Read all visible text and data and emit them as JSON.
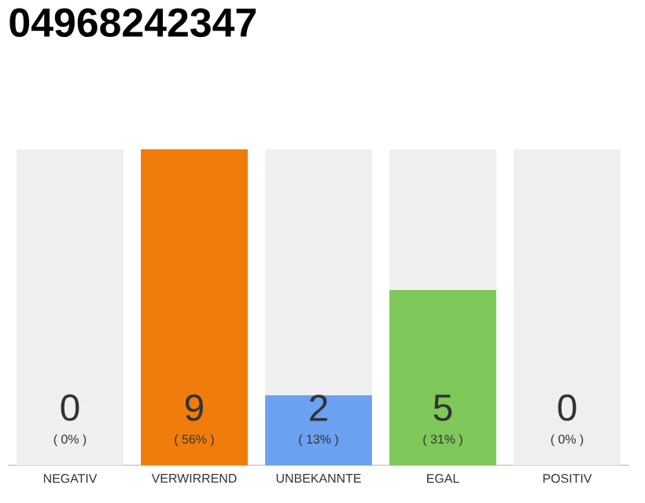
{
  "chart_data": {
    "type": "bar",
    "title": "04968242347",
    "stacked": true,
    "categories": [
      "NEGATIV",
      "VERWIRREND",
      "UNBEKANNTE",
      "EGAL",
      "POSITIV"
    ],
    "series": [
      {
        "values": [
          0,
          9,
          2,
          5,
          0
        ],
        "colors": [
          null,
          "#f07c0c",
          "#6ca0f0",
          "#7ec85a",
          null
        ],
        "value_labels": [
          null,
          "9",
          "2",
          "5",
          null
        ]
      },
      {
        "color": "#efefef",
        "values": [
          9,
          0,
          7,
          4,
          9
        ]
      }
    ],
    "annotations": [
      "( 0% )",
      "( 56% )",
      "( 13% )",
      "( 31% )",
      "( 0% )",
      "0",
      "0"
    ]
  }
}
